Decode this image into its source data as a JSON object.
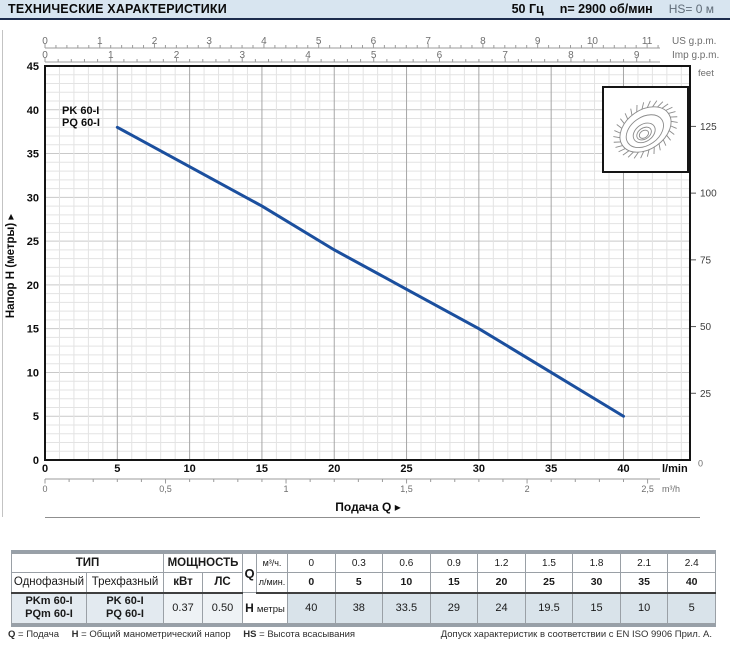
{
  "header": {
    "title": "ТЕХНИЧЕСКИЕ ХАРАКТЕРИСТИКИ",
    "frequency": "50 Гц",
    "speed": "n= 2900 об/мин",
    "suction": "HS= 0 м"
  },
  "chart_data": {
    "type": "line",
    "title": "",
    "x_title": "Подача Q",
    "x_range_lmin": [
      0,
      44.6
    ],
    "y_range_m": [
      0,
      45
    ],
    "grid": {
      "minor_lmin": 1,
      "major_lmin": 5,
      "minor_m": 1,
      "major_m": 5
    },
    "series": [
      {
        "name": "PK 60-I / PQ 60-I",
        "label_lines": [
          "PK 60-I",
          "PQ 60-I"
        ],
        "color": "#1b4f9e",
        "points_lmin_m": [
          [
            5,
            38
          ],
          [
            10,
            33.5
          ],
          [
            15,
            29
          ],
          [
            20,
            24
          ],
          [
            25,
            19.5
          ],
          [
            30,
            15
          ],
          [
            35,
            10
          ],
          [
            40,
            5
          ]
        ]
      }
    ],
    "x_axes": {
      "lmin": {
        "unit": "l/min",
        "tick_values": [
          0,
          5,
          10,
          15,
          20,
          25,
          30,
          35,
          40
        ],
        "tick_labels": [
          "0",
          "5",
          "10",
          "15",
          "20",
          "25",
          "30",
          "35",
          "40"
        ]
      },
      "m3h": {
        "unit": "m³/h",
        "tick_values": [
          0,
          0.5,
          1,
          1.5,
          2,
          2.5
        ],
        "tick_labels": [
          "0",
          "0,5",
          "1",
          "1,5",
          "2",
          "2,5"
        ],
        "lmin_per_unit": 16.667
      },
      "us_gpm": {
        "unit": "US g.p.m.",
        "tick_values": [
          0,
          1,
          2,
          3,
          4,
          5,
          6,
          7,
          8,
          9,
          10,
          11
        ],
        "lmin_per_unit": 3.785
      },
      "imp_gpm": {
        "unit": "Imp g.p.m.",
        "tick_values": [
          0,
          1,
          2,
          3,
          4,
          5,
          6,
          7,
          8,
          9
        ],
        "lmin_per_unit": 4.546
      }
    },
    "y_axes": {
      "meters": {
        "label": "Напор H (метры)",
        "tick_values": [
          0,
          5,
          10,
          15,
          20,
          25,
          30,
          35,
          40,
          45
        ]
      },
      "feet": {
        "unit": "feet",
        "tick_values": [
          25,
          50,
          75,
          100,
          125
        ],
        "zero_label": "0",
        "m_per_foot": 0.3048
      }
    }
  },
  "table": {
    "type_header": "ТИП",
    "power_header": "МОЩНОСТЬ",
    "single_phase_header": "Однофазный",
    "three_phase_header": "Трехфазный",
    "kw_header": "кВт",
    "hp_header": "ЛС",
    "q_label": "Q",
    "q_unit_m3h": "м³/ч.",
    "q_unit_lmin": "л/мин.",
    "h_label": "H",
    "h_unit": "метры",
    "models_single": [
      "PKm 60-I",
      "PQm 60-I"
    ],
    "models_three": [
      "PK 60-I",
      "PQ 60-I"
    ],
    "kw_value": "0.37",
    "hp_value": "0.50",
    "q_m3h": [
      "0",
      "0.3",
      "0.6",
      "0.9",
      "1.2",
      "1.5",
      "1.8",
      "2.1",
      "2.4"
    ],
    "q_lmin": [
      "0",
      "5",
      "10",
      "15",
      "20",
      "25",
      "30",
      "35",
      "40"
    ],
    "h_m": [
      "40",
      "38",
      "33.5",
      "29",
      "24",
      "19.5",
      "15",
      "10",
      "5"
    ]
  },
  "footer": {
    "legend": [
      {
        "key": "Q",
        "def": "= Подача"
      },
      {
        "key": "H",
        "def": "= Общий манометрический напор"
      },
      {
        "key": "HS",
        "def": "= Высота всасывания"
      }
    ],
    "note": "Допуск характеристик в соответствии с EN ISO 9906 Прил. А."
  }
}
